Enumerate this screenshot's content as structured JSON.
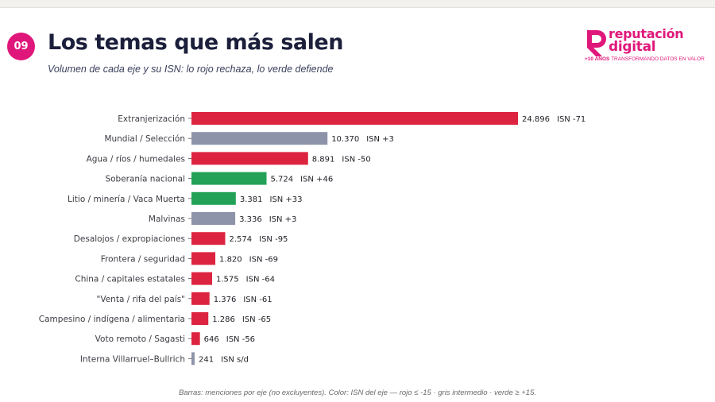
{
  "header": {
    "badge": "09",
    "title": "Los temas que más salen",
    "subtitle": "Volumen de cada eje y su ISN: lo rojo rechaza, lo verde defiende"
  },
  "logo": {
    "word1": "reputación",
    "word2": "digital",
    "tag_bold": "+10 AÑOS",
    "tag_rest": " TRANSFORMANDO DATOS EN VALOR",
    "color": "#e0177a"
  },
  "footnote": "Barras: menciones por eje (no excluyentes). Color: ISN del eje — rojo ≤ -15 · gris intermedio · verde ≥ +15.",
  "colors": {
    "red": "#dc2440",
    "gray": "#8d93a8",
    "green": "#23a157",
    "badge": "#e0177a"
  },
  "chart_data": {
    "type": "bar",
    "orientation": "horizontal",
    "categories": [
      "Extranjerización",
      "Mundial / Selección",
      "Agua / ríos / humedales",
      "Soberanía nacional",
      "Litio / minería / Vaca Muerta",
      "Malvinas",
      "Desalojos / expropiaciones",
      "Frontera / seguridad",
      "China / capitales estatales",
      "\"Venta / rifa del país\"",
      "Campesino / indígena / alimentaria",
      "Voto remoto / Sagasti",
      "Interna Villarruel–Bullrich"
    ],
    "values": [
      24896,
      10370,
      8891,
      5724,
      3381,
      3336,
      2574,
      1820,
      1575,
      1376,
      1286,
      646,
      241
    ],
    "value_labels": [
      "24.896",
      "10.370",
      "8.891",
      "5.724",
      "3.381",
      "3.336",
      "2.574",
      "1.820",
      "1.575",
      "1.376",
      "1.286",
      "646",
      "241"
    ],
    "isn_labels": [
      "ISN -71",
      "ISN +3",
      "ISN -50",
      "ISN +46",
      "ISN +33",
      "ISN +3",
      "ISN -95",
      "ISN -69",
      "ISN -64",
      "ISN -61",
      "ISN -65",
      "ISN -56",
      "ISN s/d"
    ],
    "color_groups": [
      "red",
      "gray",
      "red",
      "green",
      "green",
      "gray",
      "red",
      "red",
      "red",
      "red",
      "red",
      "red",
      "gray"
    ],
    "xlim": [
      0,
      24896
    ],
    "grid": false,
    "legend": "none"
  }
}
